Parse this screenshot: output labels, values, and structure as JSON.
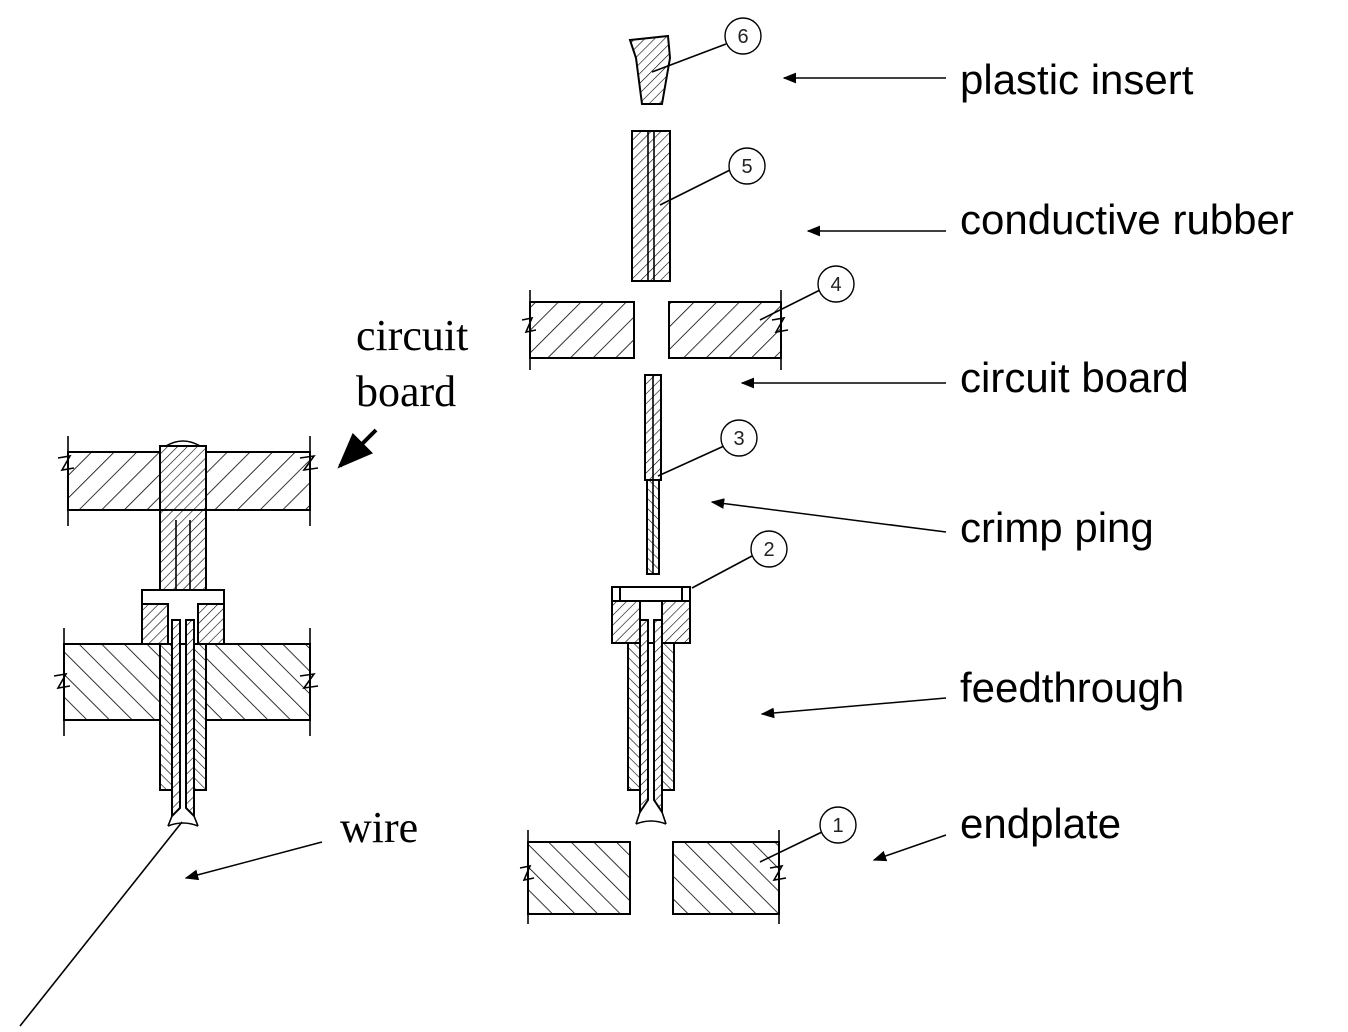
{
  "labels": {
    "plastic_insert": "plastic insert",
    "conductive_rubber": "conductive rubber",
    "circuit_board": "circuit board",
    "crimp_ping": "crimp ping",
    "feedthrough": "feedthrough",
    "endplate": "endplate"
  },
  "assembly_labels": {
    "circuit": "circuit",
    "board": "board",
    "wire": "wire"
  },
  "callouts": [
    "1",
    "2",
    "3",
    "4",
    "5",
    "6"
  ]
}
